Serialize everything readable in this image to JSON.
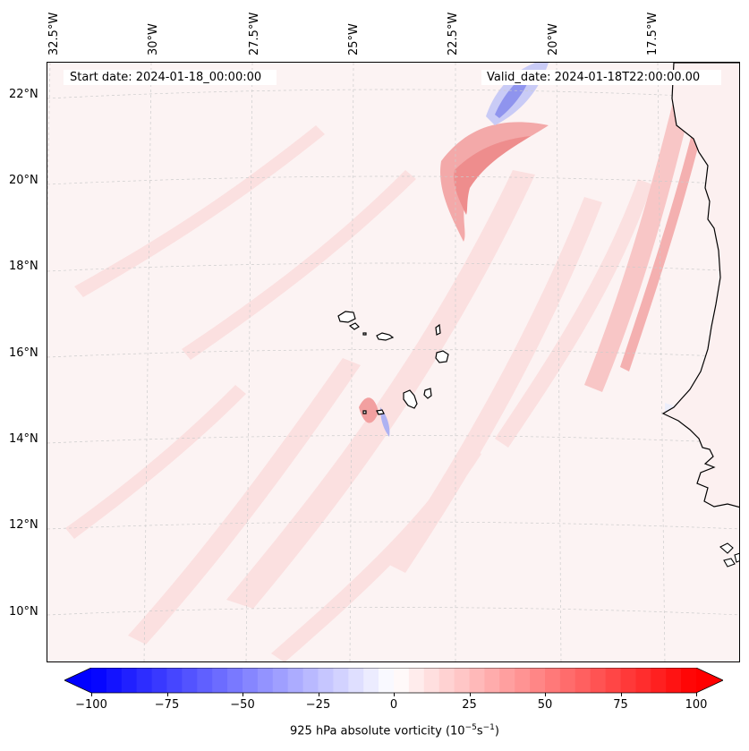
{
  "header": {
    "start_date": "Start date: 2024-01-18_00:00:00",
    "valid_date": "Valid_date: 2024-01-18T22:00:00.00"
  },
  "lon_labels": [
    "32.5°W",
    "30°W",
    "27.5°W",
    "25°W",
    "22.5°W",
    "20°W",
    "17.5°W"
  ],
  "lat_labels": [
    "22°N",
    "20°N",
    "18°N",
    "16°N",
    "14°N",
    "12°N",
    "10°N"
  ],
  "colorbar": {
    "ticks": [
      "−100",
      "−75",
      "−50",
      "−25",
      "0",
      "25",
      "50",
      "75",
      "100"
    ],
    "tick_values": [
      -100,
      -75,
      -50,
      -25,
      0,
      25,
      50,
      75,
      100
    ],
    "range": [
      -100,
      100
    ],
    "colormap": "bwr",
    "extend": "both",
    "label_main": "925 hPa absolute vorticity (10",
    "label_exp1": "−5",
    "label_mid": "s",
    "label_exp2": "−1",
    "label_end": ")"
  },
  "colors": {
    "coastline": "#000000",
    "gridline": "#c8c8c8",
    "negative": "#0000ff",
    "positive": "#ff0000"
  }
}
